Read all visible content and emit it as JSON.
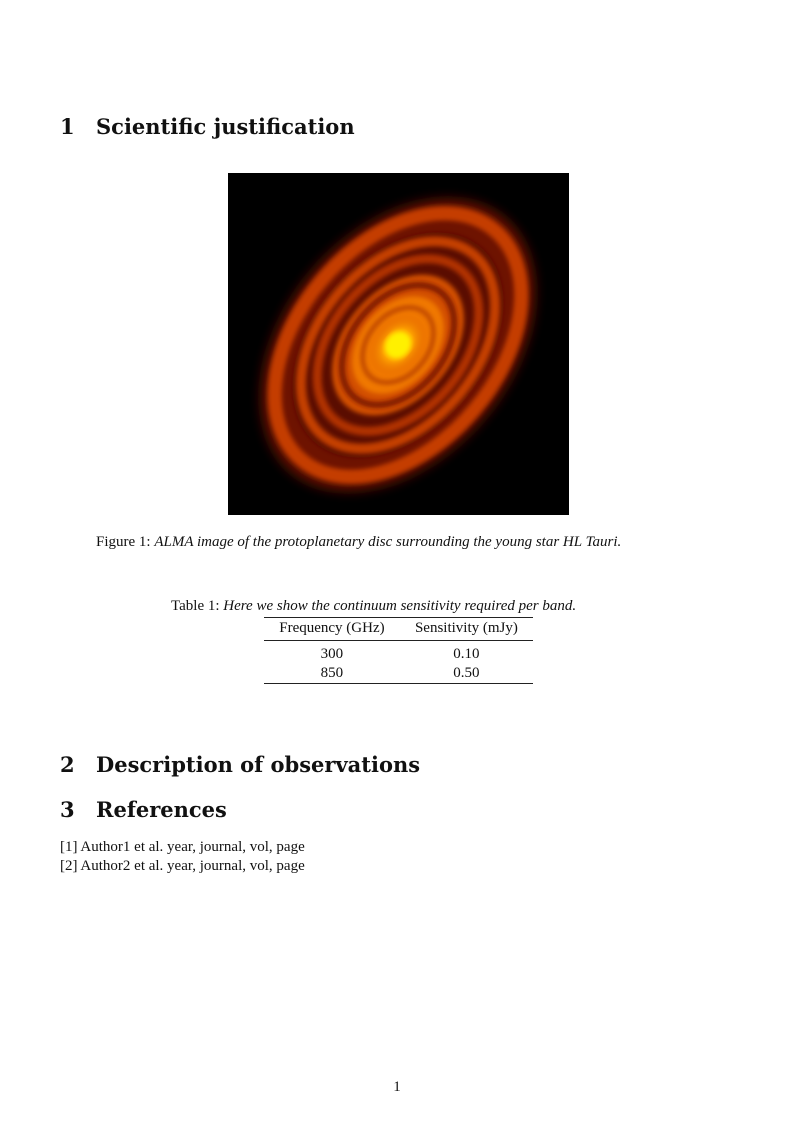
{
  "sections": [
    {
      "number": "1",
      "title": "Scientific justification"
    },
    {
      "number": "2",
      "title": "Description of observations"
    },
    {
      "number": "3",
      "title": "References"
    }
  ],
  "figure": {
    "label": "Figure 1:",
    "caption": "ALMA image of the protoplanetary disc surrounding the young star HL Tauri."
  },
  "table": {
    "label": "Table 1:",
    "caption": "Here we show the continuum sensitivity required per band.",
    "columns": [
      "Frequency (GHz)",
      "Sensitivity (mJy)"
    ],
    "rows": [
      [
        "300",
        "0.10"
      ],
      [
        "850",
        "0.50"
      ]
    ]
  },
  "references": [
    "[1] Author1 et al. year, journal, vol, page",
    "[2] Author2 et al. year, journal, vol, page"
  ],
  "page_number": "1"
}
